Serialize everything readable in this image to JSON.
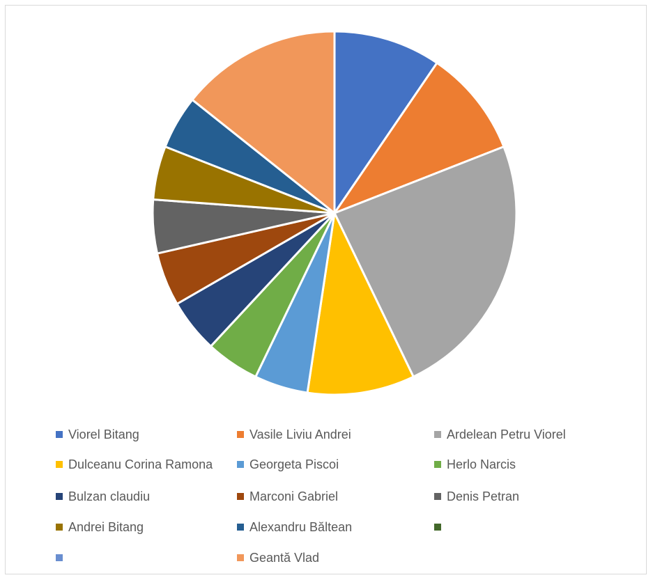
{
  "chart_data": {
    "type": "pie",
    "title": "",
    "legend_position": "bottom",
    "slices": [
      {
        "label": "Viorel Bitang",
        "value": 2,
        "color": "#4472c4"
      },
      {
        "label": "Vasile Liviu Andrei",
        "value": 2,
        "color": "#ed7d31"
      },
      {
        "label": "Ardelean Petru Viorel",
        "value": 5,
        "color": "#a5a5a5"
      },
      {
        "label": "Dulceanu Corina Ramona",
        "value": 2,
        "color": "#ffc000"
      },
      {
        "label": "Georgeta Piscoi",
        "value": 1,
        "color": "#5b9bd5"
      },
      {
        "label": "Herlo Narcis",
        "value": 1,
        "color": "#70ad47"
      },
      {
        "label": "Bulzan claudiu",
        "value": 1,
        "color": "#264478"
      },
      {
        "label": "Marconi Gabriel",
        "value": 1,
        "color": "#9e480e"
      },
      {
        "label": "Denis Petran",
        "value": 1,
        "color": "#636363"
      },
      {
        "label": "Andrei Bitang",
        "value": 1,
        "color": "#997300"
      },
      {
        "label": "Alexandru Băltean",
        "value": 1,
        "color": "#255e91"
      },
      {
        "label": "",
        "value": 0,
        "color": "#43682b"
      },
      {
        "label": "",
        "value": 0,
        "color": "#698ed0"
      },
      {
        "label": "Geantă Vlad",
        "value": 3,
        "color": "#f1975a"
      }
    ]
  }
}
